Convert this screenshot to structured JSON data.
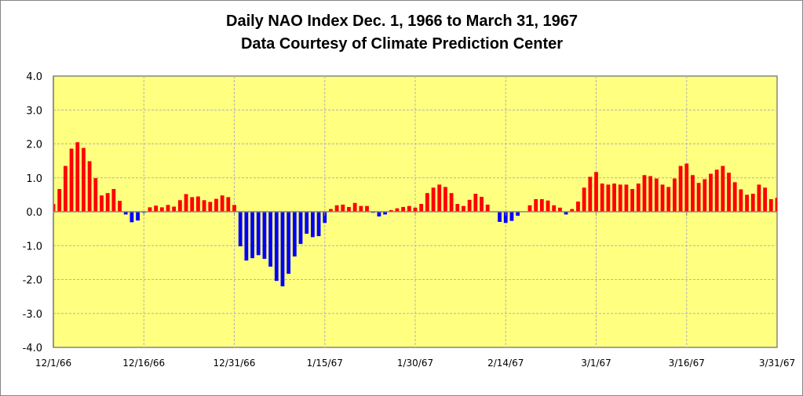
{
  "chart_data": {
    "type": "bar",
    "title": "Daily NAO Index Dec. 1, 1966 to March 31, 1967",
    "subtitle": "Data Courtesy of Climate Prediction Center",
    "xlabel": "",
    "ylabel": "",
    "ylim": [
      -4.0,
      4.0
    ],
    "yticks": [
      "4.0",
      "3.0",
      "2.0",
      "1.0",
      "0.0",
      "-1.0",
      "-2.0",
      "-3.0",
      "-4.0"
    ],
    "ytick_values": [
      4,
      3,
      2,
      1,
      0,
      -1,
      -2,
      -3,
      -4
    ],
    "xtick_labels": [
      "12/1/66",
      "12/16/66",
      "12/31/66",
      "1/15/67",
      "1/30/67",
      "2/14/67",
      "3/1/67",
      "3/16/67",
      "3/31/67"
    ],
    "xtick_day_index": [
      0,
      15,
      30,
      45,
      60,
      75,
      90,
      105,
      120
    ],
    "start_date": "12/1/66",
    "end_date": "3/31/67",
    "grid": true,
    "legend": "none",
    "colors": {
      "positive": "#FF0000",
      "negative": "#0000FF",
      "plot_background": "#FFFF80",
      "gridline": "#B4B4B4",
      "axis": "#868686"
    },
    "values": [
      0.23,
      0.67,
      1.35,
      1.86,
      2.05,
      1.88,
      1.49,
      0.99,
      0.48,
      0.55,
      0.67,
      0.32,
      -0.08,
      -0.31,
      -0.26,
      -0.03,
      0.13,
      0.18,
      0.13,
      0.2,
      0.15,
      0.34,
      0.52,
      0.43,
      0.45,
      0.34,
      0.29,
      0.38,
      0.48,
      0.43,
      0.2,
      -1.02,
      -1.44,
      -1.37,
      -1.28,
      -1.39,
      -1.62,
      -2.04,
      -2.2,
      -1.83,
      -1.32,
      -0.95,
      -0.65,
      -0.75,
      -0.72,
      -0.33,
      0.08,
      0.19,
      0.21,
      0.14,
      0.26,
      0.17,
      0.17,
      -0.03,
      -0.14,
      -0.08,
      0.05,
      0.1,
      0.14,
      0.17,
      0.12,
      0.23,
      0.55,
      0.71,
      0.8,
      0.73,
      0.55,
      0.23,
      0.17,
      0.35,
      0.53,
      0.44,
      0.21,
      0.0,
      -0.3,
      -0.33,
      -0.27,
      -0.12,
      0.0,
      0.19,
      0.37,
      0.37,
      0.33,
      0.19,
      0.12,
      -0.08,
      0.08,
      0.3,
      0.71,
      1.03,
      1.17,
      0.83,
      0.8,
      0.83,
      0.8,
      0.8,
      0.67,
      0.83,
      1.08,
      1.05,
      0.98,
      0.8,
      0.73,
      0.98,
      1.35,
      1.42,
      1.08,
      0.85,
      0.96,
      1.12,
      1.24,
      1.35,
      1.15,
      0.87,
      0.66,
      0.5,
      0.53,
      0.8,
      0.71,
      0.37,
      0.41
    ]
  }
}
